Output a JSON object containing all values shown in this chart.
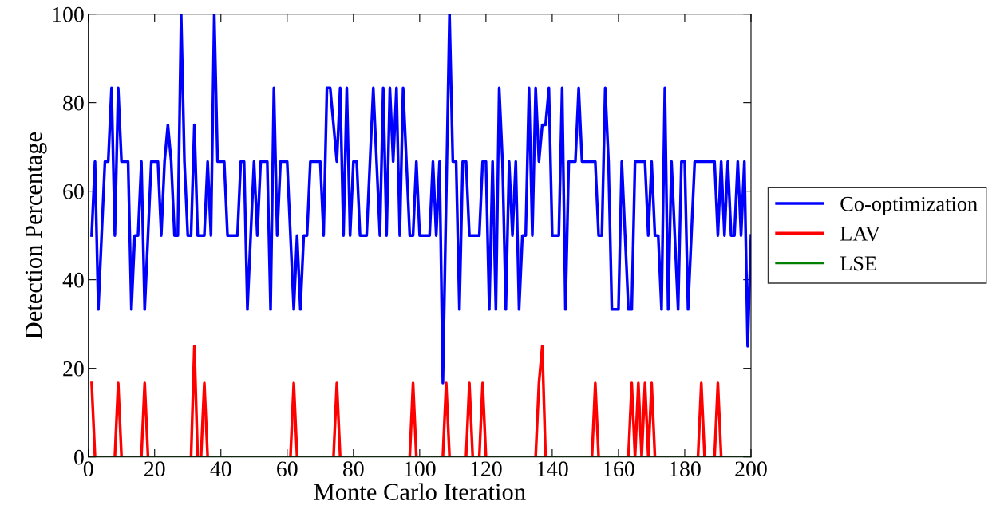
{
  "chart_data": {
    "type": "line",
    "xlabel": "Monte Carlo Iteration",
    "ylabel": "Detection Percentage",
    "xlim": [
      0,
      200
    ],
    "xticks": [
      0,
      20,
      40,
      60,
      80,
      100,
      120,
      140,
      160,
      180,
      200
    ],
    "ylim": [
      0,
      100
    ],
    "yticks": [
      0,
      20,
      40,
      60,
      80,
      100
    ],
    "grid": false,
    "legend": "right",
    "marker": "none",
    "line_style": "solid",
    "x": [
      1,
      2,
      3,
      4,
      5,
      6,
      7,
      8,
      9,
      10,
      11,
      12,
      13,
      14,
      15,
      16,
      17,
      18,
      19,
      20,
      21,
      22,
      23,
      24,
      25,
      26,
      27,
      28,
      29,
      30,
      31,
      32,
      33,
      34,
      35,
      36,
      37,
      38,
      39,
      40,
      41,
      42,
      43,
      44,
      45,
      46,
      47,
      48,
      49,
      50,
      51,
      52,
      53,
      54,
      55,
      56,
      57,
      58,
      59,
      60,
      61,
      62,
      63,
      64,
      65,
      66,
      67,
      68,
      69,
      70,
      71,
      72,
      73,
      74,
      75,
      76,
      77,
      78,
      79,
      80,
      81,
      82,
      83,
      84,
      85,
      86,
      87,
      88,
      89,
      90,
      91,
      92,
      93,
      94,
      95,
      96,
      97,
      98,
      99,
      100,
      101,
      102,
      103,
      104,
      105,
      106,
      107,
      108,
      109,
      110,
      111,
      112,
      113,
      114,
      115,
      116,
      117,
      118,
      119,
      120,
      121,
      122,
      123,
      124,
      125,
      126,
      127,
      128,
      129,
      130,
      131,
      132,
      133,
      134,
      135,
      136,
      137,
      138,
      139,
      140,
      141,
      142,
      143,
      144,
      145,
      146,
      147,
      148,
      149,
      150,
      151,
      152,
      153,
      154,
      155,
      156,
      157,
      158,
      159,
      160,
      161,
      162,
      163,
      164,
      165,
      166,
      167,
      168,
      169,
      170,
      171,
      172,
      173,
      174,
      175,
      176,
      177,
      178,
      179,
      180,
      181,
      182,
      183,
      184,
      185,
      186,
      187,
      188,
      189,
      190,
      191,
      192,
      193,
      194,
      195,
      196,
      197,
      198,
      199,
      200
    ],
    "series": [
      {
        "name": "Co-optimization",
        "color": "#0000ff",
        "values": [
          50,
          66.7,
          33.3,
          50,
          66.7,
          66.7,
          83.3,
          50,
          83.3,
          66.7,
          66.7,
          66.7,
          33.3,
          50,
          50,
          66.7,
          33.3,
          50,
          66.7,
          66.7,
          66.7,
          50,
          66.7,
          75,
          66.7,
          50,
          50,
          100,
          66.7,
          50,
          50,
          75,
          50,
          50,
          50,
          66.7,
          50,
          100,
          66.7,
          66.7,
          66.7,
          50,
          50,
          50,
          50,
          66.7,
          66.7,
          33.3,
          50,
          66.7,
          50,
          66.7,
          66.7,
          66.7,
          33.3,
          83.3,
          50,
          66.7,
          66.7,
          66.7,
          50,
          33.3,
          50,
          33.3,
          50,
          50,
          66.7,
          66.7,
          66.7,
          66.7,
          50,
          83.3,
          83.3,
          75,
          66.7,
          83.3,
          50,
          83.3,
          50,
          66.7,
          66.7,
          50,
          50,
          50,
          66.7,
          83.3,
          66.7,
          50,
          83.3,
          50,
          83.3,
          66.7,
          83.3,
          50,
          83.3,
          66.7,
          50,
          50,
          66.7,
          50,
          50,
          50,
          50,
          66.7,
          50,
          66.7,
          16.7,
          58.3,
          100,
          66.7,
          66.7,
          33.3,
          66.7,
          66.7,
          50,
          50,
          50,
          50,
          66.7,
          66.7,
          33.3,
          66.7,
          33.3,
          83.3,
          66.7,
          33.3,
          66.7,
          50,
          66.7,
          33.3,
          50,
          50,
          83.3,
          50,
          83.3,
          66.7,
          75,
          75,
          83.3,
          50,
          50,
          50,
          83.3,
          33.3,
          66.7,
          66.7,
          66.7,
          83.3,
          66.7,
          66.7,
          66.7,
          66.7,
          66.7,
          50,
          50,
          83.3,
          66.7,
          33.3,
          33.3,
          33.3,
          66.7,
          50,
          33.3,
          33.3,
          66.7,
          66.7,
          66.7,
          66.7,
          50,
          66.7,
          50,
          50,
          33.3,
          83.3,
          33.3,
          66.7,
          50,
          33.3,
          66.7,
          66.7,
          33.3,
          50,
          66.7,
          66.7,
          66.7,
          66.7,
          66.7,
          66.7,
          66.7,
          50,
          66.7,
          50,
          66.7,
          50,
          50,
          66.7,
          50,
          66.7,
          25,
          50
        ]
      },
      {
        "name": "LAV",
        "color": "#ff0000",
        "values": [
          16.7,
          0,
          null,
          null,
          null,
          null,
          null,
          0,
          16.7,
          0,
          null,
          null,
          null,
          null,
          null,
          0,
          16.7,
          0,
          null,
          null,
          null,
          null,
          null,
          null,
          null,
          null,
          null,
          null,
          null,
          null,
          0,
          25,
          0,
          0,
          16.7,
          0,
          null,
          null,
          null,
          null,
          null,
          null,
          null,
          null,
          null,
          null,
          null,
          null,
          null,
          null,
          null,
          null,
          null,
          null,
          null,
          null,
          null,
          null,
          null,
          null,
          0,
          16.7,
          0,
          null,
          null,
          null,
          null,
          null,
          null,
          null,
          null,
          null,
          null,
          0,
          16.7,
          0,
          null,
          null,
          null,
          null,
          null,
          null,
          null,
          null,
          null,
          null,
          null,
          null,
          null,
          null,
          null,
          null,
          null,
          null,
          null,
          null,
          0,
          16.7,
          0,
          null,
          null,
          null,
          null,
          null,
          null,
          null,
          0,
          16.7,
          0,
          null,
          null,
          null,
          null,
          0,
          16.7,
          0,
          null,
          0,
          16.7,
          0,
          null,
          null,
          null,
          null,
          null,
          null,
          null,
          null,
          null,
          null,
          null,
          null,
          null,
          null,
          0,
          16.7,
          25,
          0,
          null,
          null,
          null,
          null,
          null,
          null,
          null,
          null,
          null,
          null,
          null,
          null,
          null,
          0,
          16.7,
          0,
          null,
          null,
          null,
          null,
          null,
          null,
          null,
          null,
          0,
          16.7,
          0,
          16.7,
          0,
          16.7,
          0,
          16.7,
          0,
          null,
          null,
          null,
          null,
          null,
          null,
          null,
          null,
          null,
          null,
          null,
          null,
          0,
          16.7,
          0,
          null,
          null,
          0,
          16.7,
          0,
          null,
          null,
          null,
          null,
          null,
          null,
          null,
          null,
          null
        ]
      },
      {
        "name": "LSE",
        "color": "#008000",
        "values": [
          0,
          0,
          0,
          0,
          0,
          0,
          0,
          0,
          0,
          0,
          0,
          0,
          0,
          0,
          0,
          0,
          0,
          0,
          0,
          0,
          0,
          0,
          0,
          0,
          0,
          0,
          0,
          0,
          0,
          0,
          0,
          0,
          0,
          0,
          0,
          0,
          0,
          0,
          0,
          0,
          0,
          0,
          0,
          0,
          0,
          0,
          0,
          0,
          0,
          0,
          0,
          0,
          0,
          0,
          0,
          0,
          0,
          0,
          0,
          0,
          0,
          0,
          0,
          0,
          0,
          0,
          0,
          0,
          0,
          0,
          0,
          0,
          0,
          0,
          0,
          0,
          0,
          0,
          0,
          0,
          0,
          0,
          0,
          0,
          0,
          0,
          0,
          0,
          0,
          0,
          0,
          0,
          0,
          0,
          0,
          0,
          0,
          0,
          0,
          0,
          0,
          0,
          0,
          0,
          0,
          0,
          0,
          0,
          0,
          0,
          0,
          0,
          0,
          0,
          0,
          0,
          0,
          0,
          0,
          0,
          0,
          0,
          0,
          0,
          0,
          0,
          0,
          0,
          0,
          0,
          0,
          0,
          0,
          0,
          0,
          0,
          0,
          0,
          0,
          0,
          0,
          0,
          0,
          0,
          0,
          0,
          0,
          0,
          0,
          0,
          0,
          0,
          0,
          0,
          0,
          0,
          0,
          0,
          0,
          0,
          0,
          0,
          0,
          0,
          0,
          0,
          0,
          0,
          0,
          0,
          0,
          0,
          0,
          0,
          0,
          0,
          0,
          0,
          0,
          0,
          0,
          0,
          0,
          0,
          0,
          0,
          0,
          0,
          0,
          0,
          0,
          0,
          0,
          0,
          0,
          0,
          0,
          0,
          0,
          0
        ]
      }
    ]
  }
}
